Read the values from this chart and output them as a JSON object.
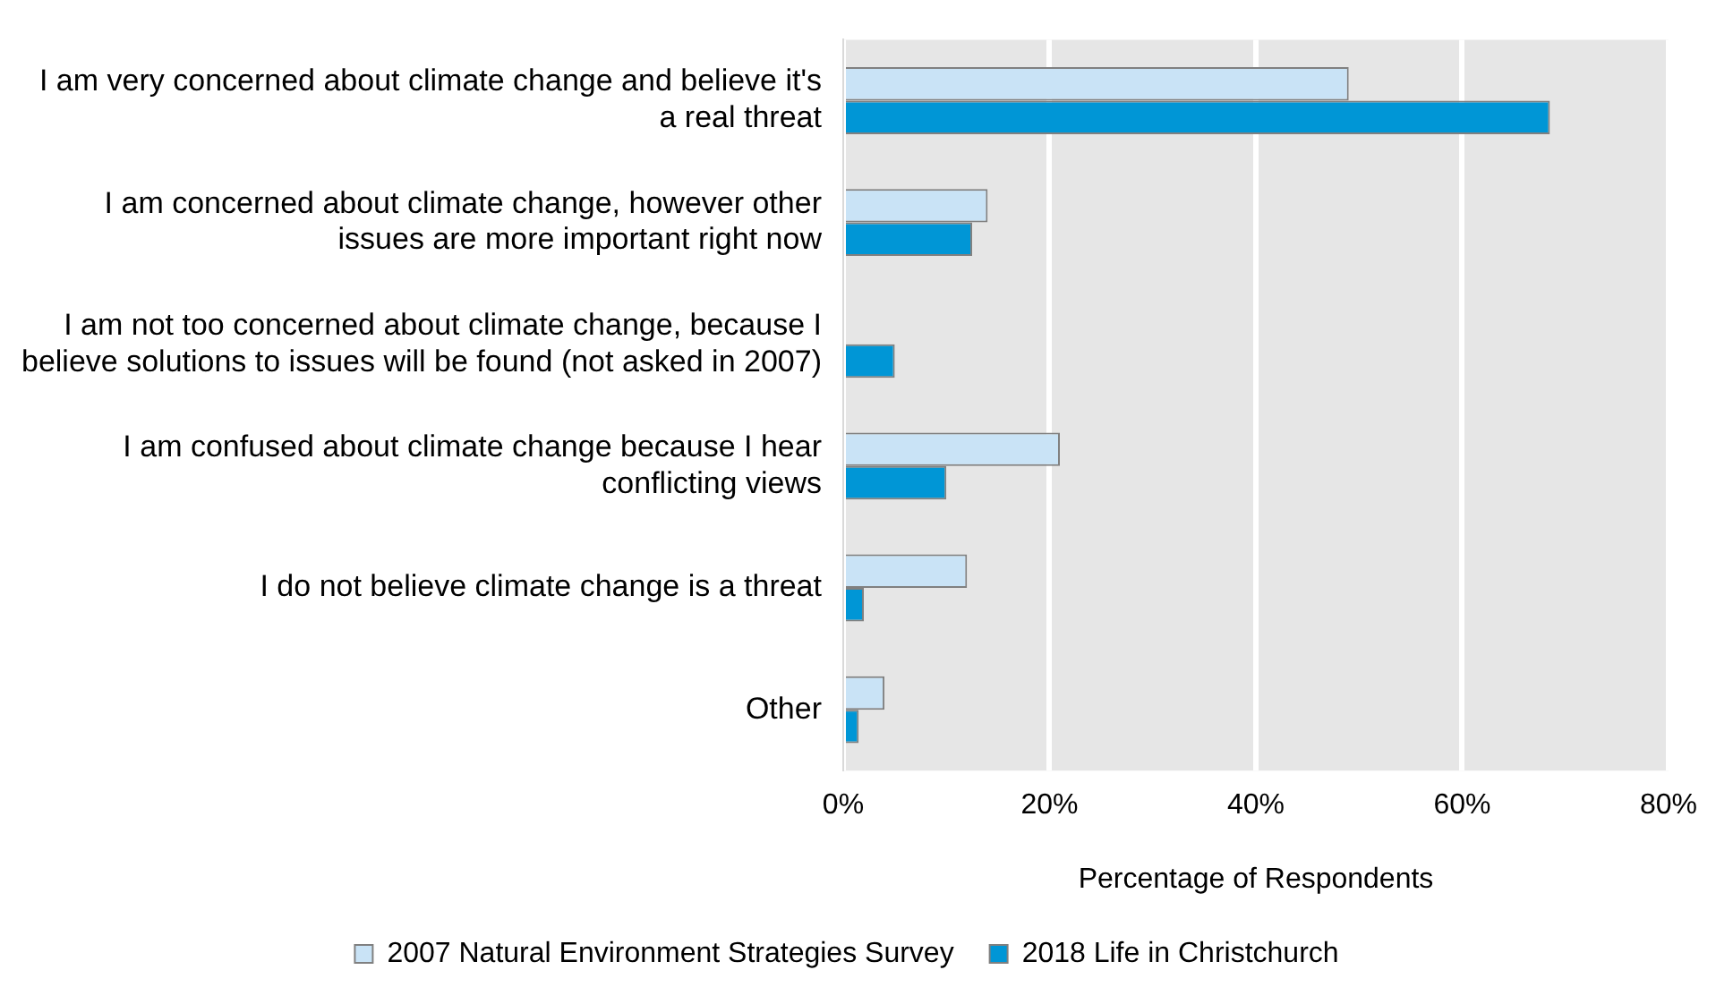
{
  "chart_data": {
    "type": "bar",
    "orientation": "horizontal",
    "xlabel": "Percentage of Respondents",
    "categories": [
      "I am very concerned about climate change and believe it's a real threat",
      "I am concerned about climate change, however other issues are more important right now",
      "I am not too concerned about climate change, because I believe solutions to issues will be found (not asked in 2007)",
      "I am confused about climate change because I hear conflicting views",
      "I do not believe climate change is a threat",
      "Other"
    ],
    "series": [
      {
        "name": "2007 Natural Environment Strategies Survey",
        "color": "#c9e3f6",
        "values": [
          49,
          14,
          null,
          21,
          12,
          4
        ]
      },
      {
        "name": "2018 Life in Christchurch",
        "color": "#0096d6",
        "values": [
          68.5,
          12.5,
          5,
          10,
          2,
          1.5
        ]
      }
    ],
    "xlim": [
      0,
      80
    ],
    "xticks": [
      {
        "value": 0,
        "label": "0%"
      },
      {
        "value": 20,
        "label": "20%"
      },
      {
        "value": 40,
        "label": "40%"
      },
      {
        "value": 60,
        "label": "60%"
      },
      {
        "value": 80,
        "label": "80%"
      }
    ],
    "grid": "x",
    "legend": "bottom"
  }
}
